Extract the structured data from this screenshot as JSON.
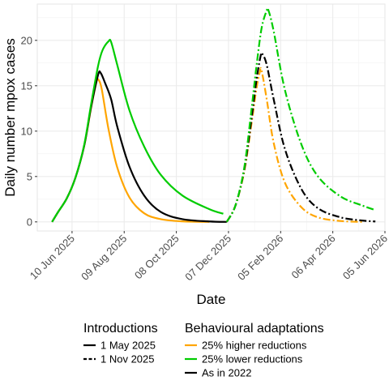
{
  "chart_data": {
    "type": "line",
    "xlabel": "Date",
    "ylabel": "Daily number mpox cases",
    "xlim": [
      "2025-05-01",
      "2026-06-05"
    ],
    "ylim": [
      -1,
      24
    ],
    "grid": true,
    "x_ticks": [
      "2025-06-10",
      "2025-08-09",
      "2025-10-08",
      "2025-12-07",
      "2026-02-05",
      "2026-04-06",
      "2026-06-05"
    ],
    "x_tick_labels": [
      "10 Jun 2025",
      "09 Aug 2025",
      "08 Oct 2025",
      "07 Dec 2025",
      "05 Feb 2026",
      "06 Apr 2026",
      "05 Jun 2026"
    ],
    "y_ticks": [
      0,
      5,
      10,
      15,
      20
    ],
    "y_tick_labels": [
      "0",
      "5",
      "10",
      "15",
      "20"
    ],
    "legend_introductions": {
      "title": "Introductions",
      "items": [
        {
          "label": "1 May 2025",
          "linetype": "solid"
        },
        {
          "label": "1 Nov 2025",
          "linetype": "dashed"
        }
      ]
    },
    "legend_behaviour": {
      "title": "Behavioural adaptations",
      "items": [
        {
          "label": "25% higher reductions",
          "color": "#FFA500"
        },
        {
          "label": "25% lower reductions",
          "color": "#00CC00"
        },
        {
          "label": "As in 2022",
          "color": "#000000"
        }
      ]
    },
    "series": [
      {
        "introduction": "1 May 2025",
        "adaptation": "25% higher reductions",
        "color": "#FFA500",
        "linetype": "solid",
        "points": [
          [
            "2025-05-18",
            0
          ],
          [
            "2025-05-25",
            1.1
          ],
          [
            "2025-06-04",
            2.6
          ],
          [
            "2025-06-14",
            4.9
          ],
          [
            "2025-06-24",
            8.4
          ],
          [
            "2025-07-02",
            12.6
          ],
          [
            "2025-07-08",
            15.4
          ],
          [
            "2025-07-10",
            15.7
          ],
          [
            "2025-07-14",
            14.7
          ],
          [
            "2025-07-22",
            10.2
          ],
          [
            "2025-08-01",
            6.0
          ],
          [
            "2025-08-15",
            2.7
          ],
          [
            "2025-09-01",
            0.95
          ],
          [
            "2025-09-20",
            0.3
          ],
          [
            "2025-10-15",
            0.06
          ],
          [
            "2025-11-15",
            0
          ]
        ]
      },
      {
        "introduction": "1 May 2025",
        "adaptation": "As in 2022",
        "color": "#000000",
        "linetype": "solid",
        "points": [
          [
            "2025-05-18",
            0
          ],
          [
            "2025-05-25",
            1.1
          ],
          [
            "2025-06-04",
            2.6
          ],
          [
            "2025-06-14",
            4.9
          ],
          [
            "2025-06-24",
            8.4
          ],
          [
            "2025-07-02",
            12.7
          ],
          [
            "2025-07-10",
            16.2
          ],
          [
            "2025-07-13",
            16.4
          ],
          [
            "2025-07-18",
            15.3
          ],
          [
            "2025-07-25",
            13.5
          ],
          [
            "2025-08-01",
            10.5
          ],
          [
            "2025-08-15",
            6.1
          ],
          [
            "2025-09-01",
            2.9
          ],
          [
            "2025-09-20",
            1.1
          ],
          [
            "2025-10-15",
            0.3
          ],
          [
            "2025-11-15",
            0.05
          ],
          [
            "2025-12-05",
            0
          ]
        ]
      },
      {
        "introduction": "1 May 2025",
        "adaptation": "25% lower reductions",
        "color": "#00CC00",
        "linetype": "solid",
        "points": [
          [
            "2025-05-18",
            0
          ],
          [
            "2025-05-25",
            1.1
          ],
          [
            "2025-06-04",
            2.6
          ],
          [
            "2025-06-14",
            4.9
          ],
          [
            "2025-06-24",
            8.5
          ],
          [
            "2025-07-02",
            13.0
          ],
          [
            "2025-07-10",
            17.2
          ],
          [
            "2025-07-15",
            18.9
          ],
          [
            "2025-07-22",
            19.9
          ],
          [
            "2025-07-25",
            19.8
          ],
          [
            "2025-08-01",
            17.3
          ],
          [
            "2025-08-15",
            12.3
          ],
          [
            "2025-09-01",
            8.3
          ],
          [
            "2025-09-20",
            5.2
          ],
          [
            "2025-10-15",
            2.9
          ],
          [
            "2025-11-15",
            1.4
          ],
          [
            "2025-12-01",
            0.9
          ]
        ]
      },
      {
        "introduction": "1 Nov 2025",
        "adaptation": "25% higher reductions",
        "color": "#FFA500",
        "linetype": "dashed",
        "points": [
          [
            "2025-12-05",
            0
          ],
          [
            "2025-12-15",
            1.8
          ],
          [
            "2025-12-25",
            5.5
          ],
          [
            "2026-01-02",
            10.5
          ],
          [
            "2026-01-08",
            14.6
          ],
          [
            "2026-01-12",
            16.5
          ],
          [
            "2026-01-14",
            16.7
          ],
          [
            "2026-01-20",
            13.5
          ],
          [
            "2026-01-28",
            8.7
          ],
          [
            "2026-02-10",
            4.3
          ],
          [
            "2026-03-01",
            1.6
          ],
          [
            "2026-03-20",
            0.5
          ],
          [
            "2026-04-15",
            0.1
          ],
          [
            "2026-05-10",
            0
          ]
        ]
      },
      {
        "introduction": "1 Nov 2025",
        "adaptation": "As in 2022",
        "color": "#000000",
        "linetype": "dashed",
        "points": [
          [
            "2025-12-05",
            0
          ],
          [
            "2025-12-15",
            1.8
          ],
          [
            "2025-12-25",
            5.7
          ],
          [
            "2026-01-02",
            11.0
          ],
          [
            "2026-01-08",
            15.5
          ],
          [
            "2026-01-13",
            18.3
          ],
          [
            "2026-01-15",
            18.5
          ],
          [
            "2026-01-20",
            17.3
          ],
          [
            "2026-01-28",
            13.5
          ],
          [
            "2026-02-10",
            8.0
          ],
          [
            "2026-03-01",
            3.6
          ],
          [
            "2026-03-20",
            1.5
          ],
          [
            "2026-04-15",
            0.5
          ],
          [
            "2026-05-10",
            0.15
          ],
          [
            "2026-05-25",
            0.05
          ]
        ]
      },
      {
        "introduction": "1 Nov 2025",
        "adaptation": "25% lower reductions",
        "color": "#00CC00",
        "linetype": "dashed",
        "points": [
          [
            "2025-12-05",
            0
          ],
          [
            "2025-12-15",
            1.8
          ],
          [
            "2025-12-25",
            5.9
          ],
          [
            "2026-01-02",
            12.0
          ],
          [
            "2026-01-08",
            17.0
          ],
          [
            "2026-01-14",
            21.3
          ],
          [
            "2026-01-20",
            23.3
          ],
          [
            "2026-01-22",
            23.3
          ],
          [
            "2026-01-28",
            21.0
          ],
          [
            "2026-02-10",
            14.5
          ],
          [
            "2026-03-01",
            8.5
          ],
          [
            "2026-03-20",
            5.0
          ],
          [
            "2026-04-15",
            2.8
          ],
          [
            "2026-05-10",
            1.8
          ],
          [
            "2026-05-25",
            1.3
          ]
        ]
      }
    ]
  }
}
